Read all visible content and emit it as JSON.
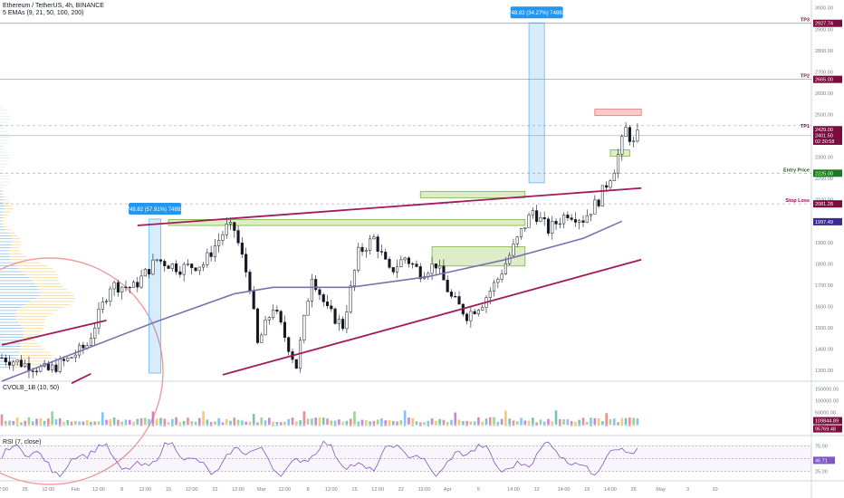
{
  "header": {
    "symbol_line": "Ethereum / TetherUS, 4h, BINANCE",
    "ema_line": "5 EMAs (9, 21, 50, 100, 200)"
  },
  "cvol_pane": {
    "title": "CVOLB_1B (10, 50)"
  },
  "rsi_pane": {
    "title": "RSI (7, close)"
  },
  "chart_data": {
    "type": "candlestick",
    "price_axis": {
      "range": [
        1250,
        3020
      ],
      "ticks": [
        1300,
        1400,
        1500,
        1600,
        1700,
        1800,
        1900,
        2000,
        2100,
        2200,
        2300,
        2400,
        2500,
        2600,
        2700,
        2800,
        2900,
        3000
      ],
      "tick_labels": [
        "1300.00",
        "1400.00",
        "1500.00",
        "1600.00",
        "1700.00",
        "1800.00",
        "1900.00",
        "2000.00",
        "2100.00",
        "2200.00",
        "2300.00",
        "2400.00",
        "2500.00",
        "2600.00",
        "2700.00",
        "2800.00",
        "2900.00",
        "3000.00"
      ]
    },
    "time_axis": {
      "labels": [
        "12:00",
        "25",
        "12:00",
        "Feb",
        "12:00",
        "8",
        "12:00",
        "15",
        "12:00",
        "22",
        "12:00",
        "Mar",
        "12:00",
        "8",
        "12:00",
        "15",
        "12:00",
        "22",
        "12:00",
        "Apr",
        "5",
        "14:00",
        "12",
        "14:00",
        "19",
        "14:00",
        "26",
        "May",
        "3",
        "10"
      ],
      "label_x_index": [
        0,
        6,
        12,
        19,
        25,
        31,
        37,
        43,
        49,
        55,
        61,
        67,
        73,
        79,
        85,
        91,
        97,
        103,
        109,
        115,
        123,
        132,
        138,
        145,
        151,
        157,
        163,
        170,
        177,
        184
      ]
    },
    "candles": {
      "start_close": 1360,
      "trend_keypoints": [
        [
          0,
          1360
        ],
        [
          6,
          1330
        ],
        [
          12,
          1300
        ],
        [
          17,
          1350
        ],
        [
          22,
          1420
        ],
        [
          28,
          1700
        ],
        [
          34,
          1690
        ],
        [
          40,
          1820
        ],
        [
          46,
          1780
        ],
        [
          52,
          1800
        ],
        [
          58,
          1970
        ],
        [
          60,
          1960
        ],
        [
          64,
          1700
        ],
        [
          66,
          1420
        ],
        [
          70,
          1600
        ],
        [
          76,
          1320
        ],
        [
          80,
          1750
        ],
        [
          84,
          1580
        ],
        [
          88,
          1510
        ],
        [
          92,
          1850
        ],
        [
          96,
          1920
        ],
        [
          100,
          1760
        ],
        [
          104,
          1830
        ],
        [
          108,
          1760
        ],
        [
          112,
          1800
        ],
        [
          116,
          1640
        ],
        [
          120,
          1560
        ],
        [
          124,
          1620
        ],
        [
          128,
          1730
        ],
        [
          134,
          1950
        ],
        [
          137,
          2050
        ],
        [
          141,
          1960
        ],
        [
          146,
          2040
        ],
        [
          150,
          2010
        ],
        [
          154,
          2100
        ],
        [
          158,
          2250
        ],
        [
          161,
          2430
        ],
        [
          163,
          2360
        ],
        [
          164,
          2400
        ]
      ],
      "last_price": 2401.5
    },
    "series": [
      {
        "name": "EMA 200",
        "points": [
          [
            0,
            1250
          ],
          [
            20,
            1390
          ],
          [
            40,
            1530
          ],
          [
            60,
            1660
          ],
          [
            70,
            1690
          ],
          [
            90,
            1690
          ],
          [
            110,
            1740
          ],
          [
            130,
            1820
          ],
          [
            150,
            1920
          ],
          [
            160,
            2000
          ]
        ],
        "color": "#7e6fb0"
      }
    ],
    "price_labels": [
      {
        "text": "2927.74",
        "price": 2927.74,
        "bg": "#7a0c3e"
      },
      {
        "text": "2665.00",
        "price": 2665.0,
        "bg": "#7a0c3e"
      },
      {
        "text": "2429.00",
        "price": 2429.0,
        "bg": "#7a0c3e"
      },
      {
        "text": "2401.50",
        "price": 2401.5,
        "bg": "#7a0c3e"
      },
      {
        "text": "02:30:58",
        "price": 2375.0,
        "bg": "#7a0c3e"
      },
      {
        "text": "2225.00",
        "price": 2225.0,
        "bg": "#1b7a1b"
      },
      {
        "text": "2081.28",
        "price": 2081.28,
        "bg": "#7a0c3e"
      },
      {
        "text": "1997.49",
        "price": 1997.49,
        "bg": "#3a2d8f"
      }
    ],
    "level_labels": [
      {
        "text": "TP3",
        "price": 2927.74,
        "color": "#880e4f"
      },
      {
        "text": "TP2",
        "price": 2665.0,
        "color": "#880e4f"
      },
      {
        "text": "TP1",
        "price": 2429.0,
        "color": "#880e4f"
      },
      {
        "text": "Entry Price",
        "price": 2225.0,
        "color": "#1b5e20"
      },
      {
        "text": "Stop Loss",
        "price": 2081.28,
        "color": "#880e4f"
      }
    ],
    "trendlines": [
      {
        "from": [
          0,
          1420
        ],
        "to": [
          27,
          1535
        ],
        "color": "#a3195b"
      },
      {
        "from": [
          18,
          1240
        ],
        "to": [
          23,
          1285
        ],
        "color": "#a3195b"
      },
      {
        "from": [
          35,
          1980
        ],
        "to": [
          165,
          2155
        ],
        "color": "#a3195b"
      },
      {
        "from": [
          57,
          1280
        ],
        "to": [
          165,
          1820
        ],
        "color": "#a3195b"
      }
    ],
    "zones": [
      {
        "x": [
          157,
          162
        ],
        "y": [
          2305,
          2335
        ],
        "kind": "green"
      },
      {
        "x": [
          43,
          135
        ],
        "y": [
          1980,
          2008
        ],
        "kind": "green"
      },
      {
        "x": [
          108,
          135
        ],
        "y": [
          2110,
          2140
        ],
        "kind": "green"
      },
      {
        "x": [
          111,
          135
        ],
        "y": [
          1790,
          1880
        ],
        "kind": "green"
      },
      {
        "x": [
          153,
          165
        ],
        "y": [
          2495,
          2525
        ],
        "kind": "red"
      }
    ],
    "measures": [
      {
        "label": "748.82 (57.91%) 74882",
        "x": [
          38,
          41
        ],
        "y": [
          1288,
          2010
        ]
      },
      {
        "label": "748.82 (34.27%) 74882",
        "x": [
          136,
          140
        ],
        "y": [
          2180,
          2930
        ]
      }
    ],
    "cvol": {
      "tick_labels": [
        "150000.00",
        "100000.00",
        "50000.00",
        "0.00"
      ],
      "ticks": [
        150000,
        100000,
        50000,
        0
      ],
      "range": [
        -40000,
        175000
      ],
      "badges": [
        {
          "text": "109844.89",
          "bg": "#7a0c3e"
        },
        {
          "text": "95769.48",
          "bg": "#7a0c3e"
        }
      ]
    },
    "rsi": {
      "tick_labels": [
        "75.00",
        "50.00",
        "25.00"
      ],
      "ticks": [
        75,
        50,
        25
      ],
      "range": [
        10,
        92
      ],
      "last": 46.71,
      "last_label": "46.71"
    }
  }
}
